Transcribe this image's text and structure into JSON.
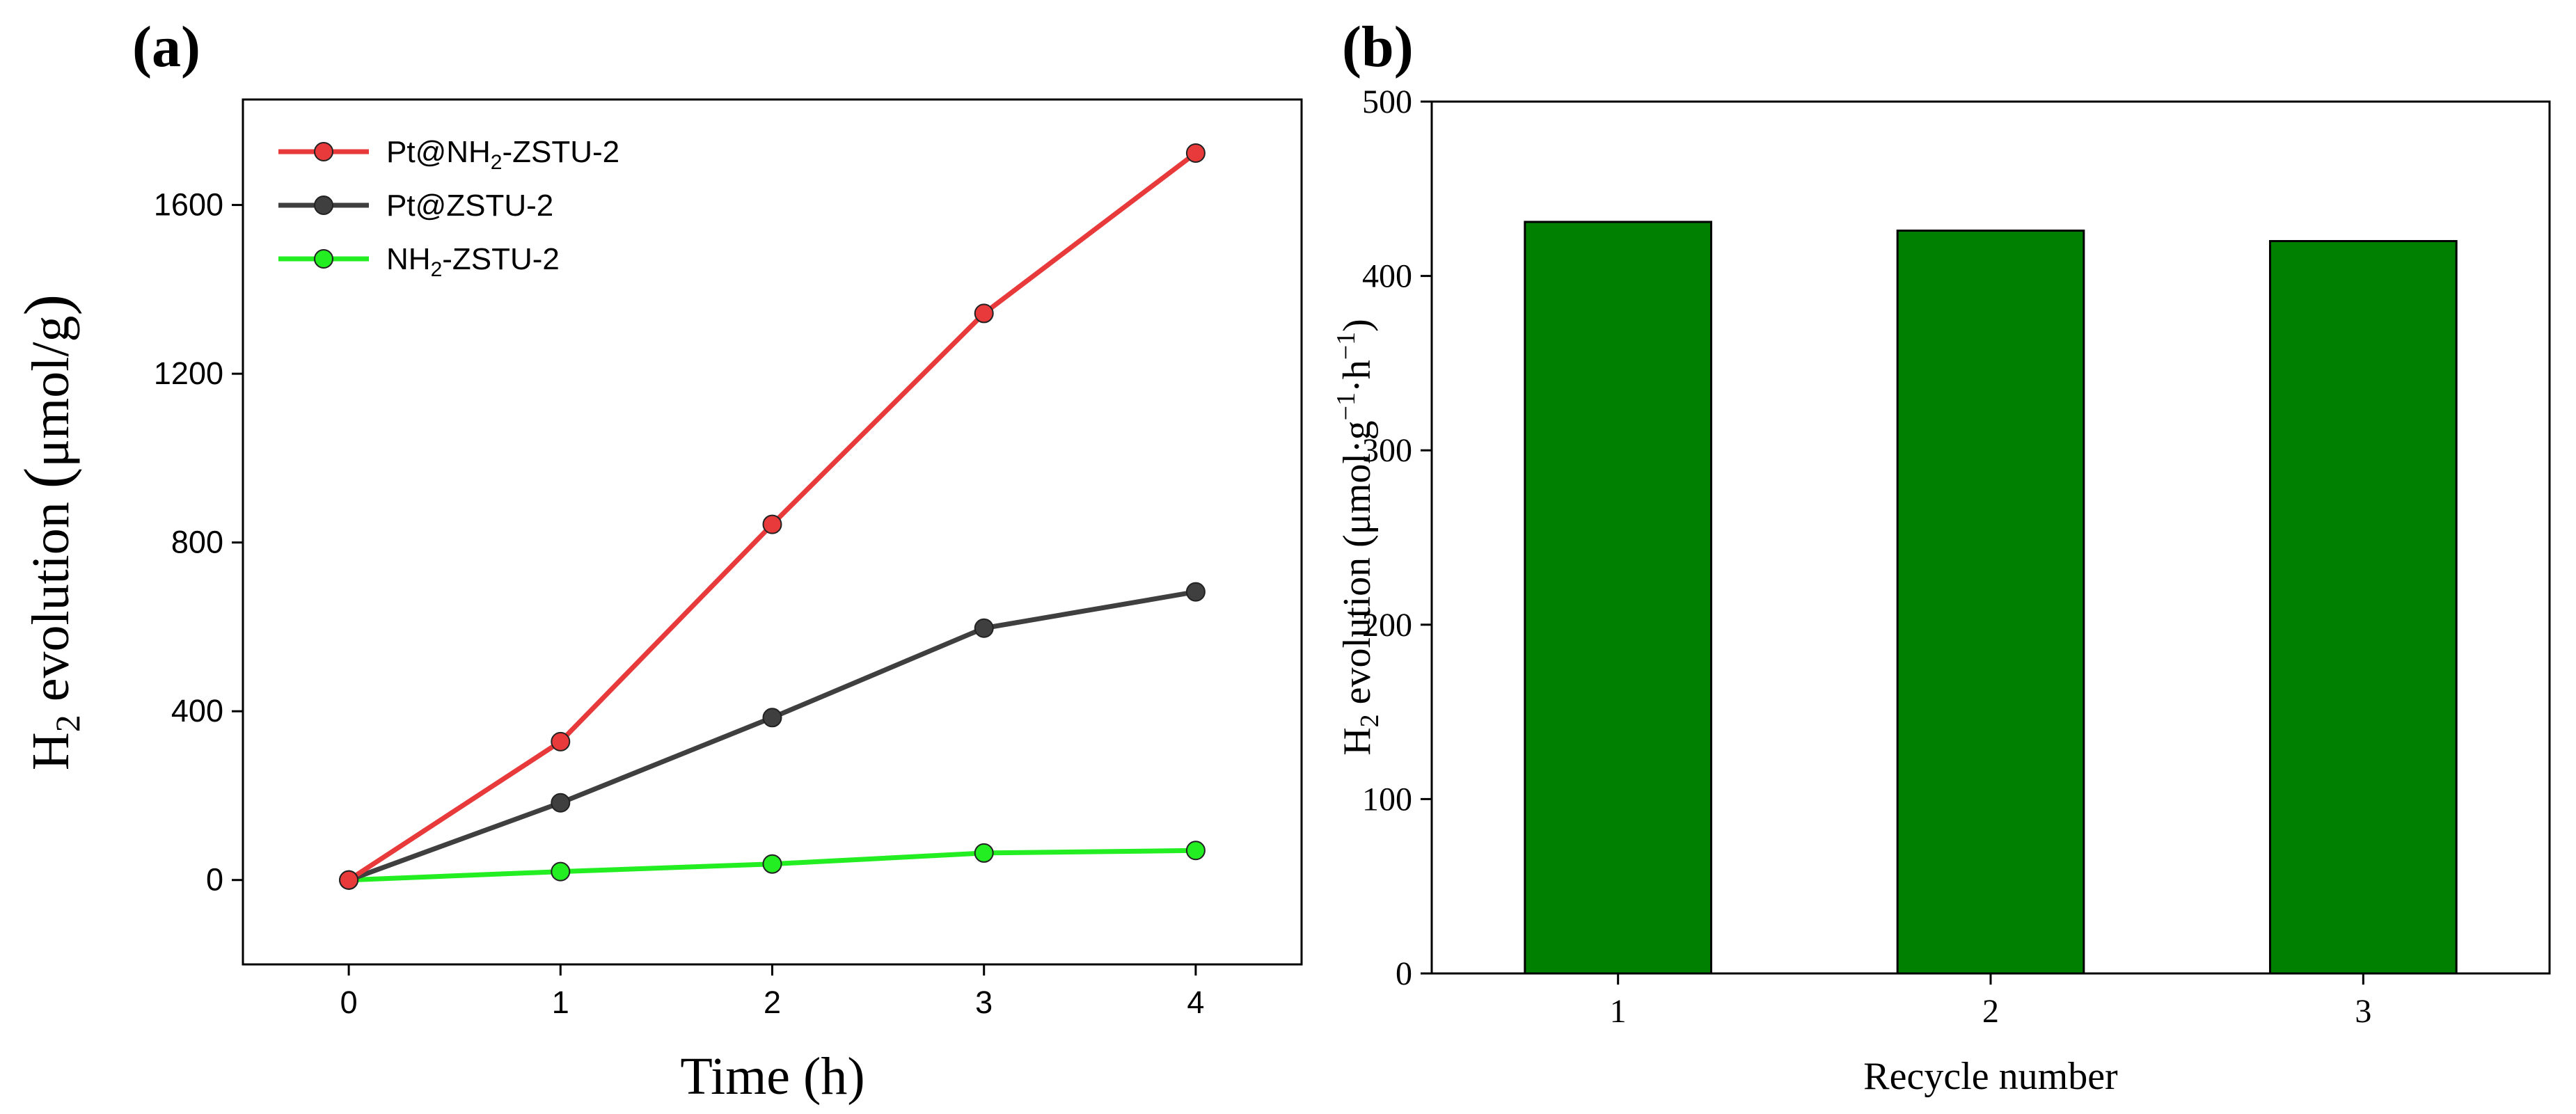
{
  "chart_data": [
    {
      "panel_label": "(a)",
      "type": "line",
      "xlabel": "Time (h)",
      "ylabel": "H2 evolution (μmol/g)",
      "ylabel_parts": {
        "main": "H",
        "sub": "2",
        "rest": " evolution ",
        "unit_open": "(",
        "unit": "μmol/g",
        "unit_close": ")"
      },
      "xlim": [
        -0.5,
        4.5
      ],
      "ylim": [
        -200,
        1850
      ],
      "x_ticks": [
        0,
        1,
        2,
        3,
        4
      ],
      "x_tick_labels": [
        "0",
        "1",
        "2",
        "3",
        "4"
      ],
      "y_ticks": [
        0,
        400,
        800,
        1200,
        1600
      ],
      "y_tick_labels": [
        "0",
        "400",
        "800",
        "1200",
        "1600"
      ],
      "x": [
        0,
        1,
        2,
        3,
        4
      ],
      "series": [
        {
          "name": "Pt@NH2-ZSTU-2",
          "legend_parts": [
            "Pt@NH",
            "2",
            "-ZSTU-2"
          ],
          "color": "#e8393b",
          "values": [
            0,
            328,
            843,
            1343,
            1723
          ]
        },
        {
          "name": "Pt@ZSTU-2",
          "legend_parts": [
            "Pt@ZSTU-2",
            "",
            ""
          ],
          "color": "#3f3f3f",
          "values": [
            0,
            183,
            385,
            597,
            683
          ]
        },
        {
          "name": "NH2-ZSTU-2",
          "legend_parts": [
            "NH",
            "2",
            "-ZSTU-2"
          ],
          "color": "#22ee22",
          "values": [
            0,
            20,
            38,
            64,
            70
          ]
        }
      ],
      "legend_position": "top-left"
    },
    {
      "panel_label": "(b)",
      "type": "bar",
      "xlabel": "Recycle number",
      "ylabel_parts": {
        "main": "H",
        "sub": "2",
        "rest": " evolution (μmol·g",
        "sup1": "−1",
        "mid": "·h",
        "sup2": "−1",
        "end": ")"
      },
      "ylim": [
        0,
        500
      ],
      "y_ticks": [
        0,
        100,
        200,
        300,
        400,
        500
      ],
      "y_tick_labels": [
        "0",
        "100",
        "200",
        "300",
        "400",
        "500"
      ],
      "categories": [
        "1",
        "2",
        "3"
      ],
      "values": [
        431,
        426,
        420
      ],
      "bar_color": "#008000"
    }
  ]
}
